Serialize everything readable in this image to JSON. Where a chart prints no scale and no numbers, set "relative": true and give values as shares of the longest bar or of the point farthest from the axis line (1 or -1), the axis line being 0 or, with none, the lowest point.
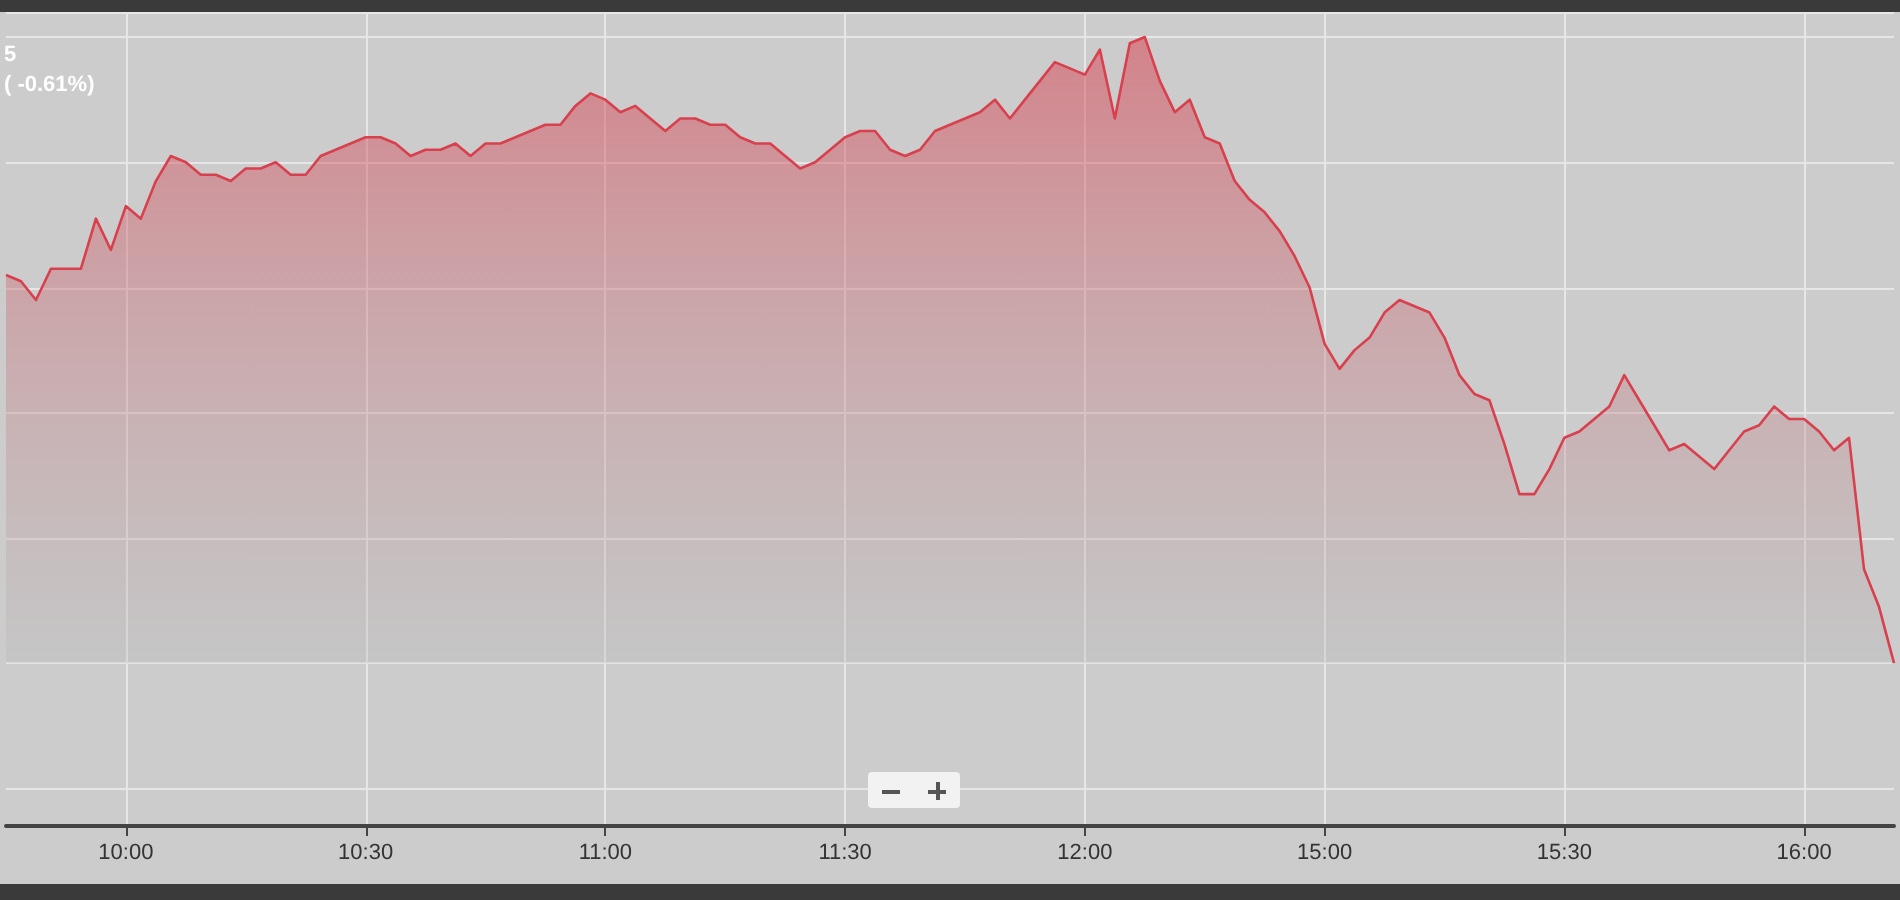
{
  "chart_data": {
    "type": "area",
    "relative": true,
    "annotations": [
      "5",
      "( -0.61%)"
    ],
    "categories": [
      null,
      null,
      null,
      null,
      null,
      null,
      null,
      null,
      "10:00",
      null,
      null,
      null,
      null,
      null,
      null,
      null,
      null,
      null,
      null,
      null,
      null,
      null,
      null,
      null,
      "10:30",
      null,
      null,
      null,
      null,
      null,
      null,
      null,
      null,
      null,
      null,
      null,
      null,
      null,
      null,
      null,
      "11:00",
      null,
      null,
      null,
      null,
      null,
      null,
      null,
      null,
      null,
      null,
      null,
      null,
      null,
      null,
      null,
      "11:30",
      null,
      null,
      null,
      null,
      null,
      null,
      null,
      null,
      null,
      null,
      null,
      null,
      null,
      null,
      null,
      "12:00",
      null,
      null,
      null,
      null,
      null,
      null,
      null,
      null,
      null,
      null,
      null,
      null,
      null,
      null,
      null,
      "15:00",
      null,
      null,
      null,
      null,
      null,
      null,
      null,
      null,
      null,
      null,
      null,
      null,
      null,
      null,
      null,
      "15:30",
      null,
      null,
      null,
      null,
      null,
      null,
      null,
      null,
      null,
      null,
      null,
      null,
      null,
      null,
      null,
      "16:00",
      null,
      null,
      null,
      null,
      null,
      null
    ],
    "series": [
      {
        "color": "#d9404e",
        "values": [
          0.62,
          0.61,
          0.58,
          0.63,
          0.63,
          0.63,
          0.71,
          0.66,
          0.73,
          0.71,
          0.77,
          0.81,
          0.8,
          0.78,
          0.78,
          0.77,
          0.79,
          0.79,
          0.8,
          0.78,
          0.78,
          0.81,
          0.82,
          0.83,
          0.84,
          0.84,
          0.83,
          0.81,
          0.82,
          0.82,
          0.83,
          0.81,
          0.83,
          0.83,
          0.84,
          0.85,
          0.86,
          0.86,
          0.89,
          0.91,
          0.9,
          0.88,
          0.89,
          0.87,
          0.85,
          0.87,
          0.87,
          0.86,
          0.86,
          0.84,
          0.83,
          0.83,
          0.81,
          0.79,
          0.8,
          0.82,
          0.84,
          0.85,
          0.85,
          0.82,
          0.81,
          0.82,
          0.85,
          0.86,
          0.87,
          0.88,
          0.9,
          0.87,
          0.9,
          0.93,
          0.96,
          0.95,
          0.94,
          0.98,
          0.87,
          0.99,
          1,
          0.93,
          0.88,
          0.9,
          0.84,
          0.83,
          0.77,
          0.74,
          0.72,
          0.69,
          0.65,
          0.6,
          0.51,
          0.47,
          0.5,
          0.52,
          0.56,
          0.58,
          0.57,
          0.56,
          0.52,
          0.46,
          0.43,
          0.42,
          0.35,
          0.27,
          0.27,
          0.31,
          0.36,
          0.37,
          0.39,
          0.41,
          0.46,
          0.42,
          0.38,
          0.34,
          0.35,
          0.33,
          0.31,
          0.34,
          0.37,
          0.38,
          0.41,
          0.39,
          0.39,
          0.37,
          0.34,
          0.36,
          0.15,
          0.09,
          0
        ]
      }
    ],
    "grid": true,
    "marker": "none"
  }
}
